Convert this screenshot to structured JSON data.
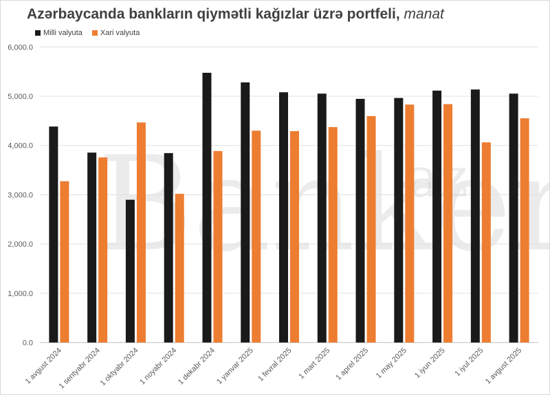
{
  "title": {
    "main": "Azərbaycanda bankların qiymətli kağızlar üzrə portfeli,",
    "unit": "manat"
  },
  "watermark": {
    "text": "Banker",
    "suffix": "az"
  },
  "colors": {
    "milli": "#1a1a1a",
    "xari": "#ed7d31",
    "grid": "#e0e0e0",
    "text": "#595959"
  },
  "chart_data": {
    "type": "bar",
    "title": "Azərbaycanda bankların qiymətli kağızlar üzrə portfeli, manat",
    "xlabel": "",
    "ylabel": "",
    "ylim": [
      0,
      6000
    ],
    "yticks": [
      0,
      1000,
      2000,
      3000,
      4000,
      5000,
      6000
    ],
    "ytick_labels": [
      "0.0",
      "1,000.0",
      "2,000.0",
      "3,000.0",
      "4,000.0",
      "5,000.0",
      "6,000.0"
    ],
    "grid": true,
    "legend_position": "top-left",
    "categories": [
      "1 avgust 2024",
      "1 sentyabr 2024",
      "1 oktyabr 2024",
      "1 noyabr 2024",
      "1 dekabr 2024",
      "1 yanvar 2025",
      "1 fevral 2025",
      "1 mart 2025",
      "1 aprel 2025",
      "1 may 2025",
      "1 iyun 2025",
      "1 iyul 2025",
      "1 avgust 2025"
    ],
    "series": [
      {
        "name": "Milli valyuta",
        "values": [
          4384,
          3855,
          2898,
          3845,
          5475,
          5280,
          5080,
          5052,
          4946,
          4964,
          5113,
          5136,
          5052
        ]
      },
      {
        "name": "Xari valyuta",
        "values": [
          3274,
          3757,
          4467,
          3018,
          3887,
          4300,
          4291,
          4374,
          4597,
          4830,
          4839,
          4063,
          4551
        ]
      }
    ]
  }
}
